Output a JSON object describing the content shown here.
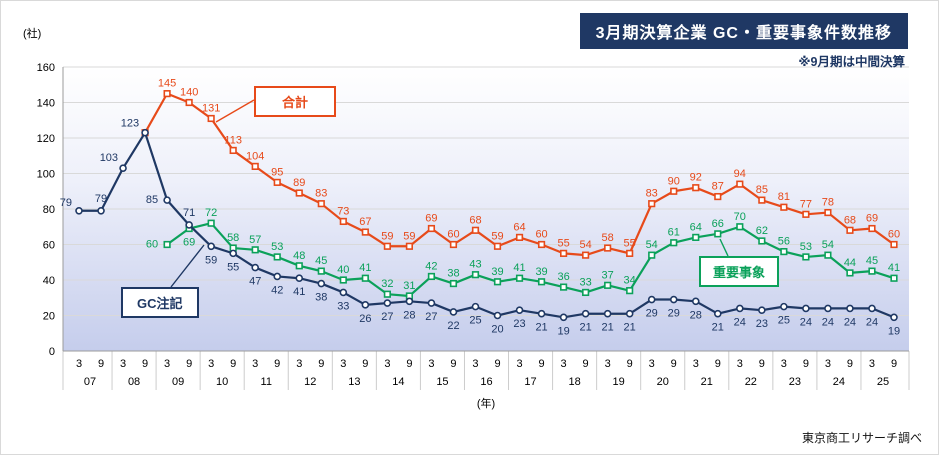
{
  "header": {
    "title": "3月期決算企業 GC・重要事象件数推移",
    "note": "※9月期は中間決算"
  },
  "footer": {
    "credit": "東京商工リサーチ調べ"
  },
  "chart_data": {
    "type": "line",
    "title": "3月期決算企業 GC・重要事象件数推移",
    "ylabel_unit": "(社)",
    "xlabel": "(年)",
    "ylim": [
      0,
      160
    ],
    "ytick_step": 20,
    "grid": true,
    "legend_position": "inline-labels",
    "years": [
      "07",
      "08",
      "09",
      "10",
      "11",
      "12",
      "13",
      "14",
      "15",
      "16",
      "17",
      "18",
      "19",
      "20",
      "21",
      "22",
      "23",
      "24",
      "25"
    ],
    "categories": [
      "3",
      "9",
      "3",
      "9",
      "3",
      "9",
      "3",
      "9",
      "3",
      "9",
      "3",
      "9",
      "3",
      "9",
      "3",
      "9",
      "3",
      "9",
      "3",
      "9",
      "3",
      "9",
      "3",
      "9",
      "3",
      "9",
      "3",
      "9",
      "3",
      "9",
      "3",
      "9",
      "3",
      "9",
      "3",
      "9",
      "3",
      "9"
    ],
    "series": [
      {
        "key": "total",
        "name": "合計",
        "color": "#e74a1a",
        "marker": "square",
        "label_start": 4,
        "values": [
          null,
          null,
          null,
          123,
          145,
          140,
          131,
          113,
          104,
          95,
          89,
          83,
          73,
          67,
          59,
          59,
          69,
          60,
          68,
          59,
          64,
          60,
          55,
          54,
          58,
          55,
          83,
          90,
          92,
          87,
          94,
          85,
          81,
          77,
          78,
          68,
          69,
          60
        ]
      },
      {
        "key": "gc",
        "name": "GC注記",
        "color": "#1f3864",
        "marker": "circle",
        "label_start": 0,
        "values": [
          79,
          79,
          103,
          123,
          85,
          71,
          59,
          55,
          47,
          42,
          41,
          38,
          33,
          26,
          27,
          28,
          27,
          22,
          25,
          20,
          23,
          21,
          19,
          21,
          21,
          21,
          29,
          29,
          28,
          21,
          24,
          23,
          25,
          24,
          24,
          24,
          24,
          19
        ]
      },
      {
        "key": "important",
        "name": "重要事象",
        "color": "#0ba15a",
        "marker": "square",
        "label_start": 0,
        "values": [
          null,
          null,
          null,
          null,
          60,
          69,
          72,
          58,
          57,
          53,
          48,
          45,
          40,
          41,
          32,
          31,
          42,
          38,
          43,
          39,
          41,
          39,
          36,
          33,
          37,
          34,
          54,
          61,
          64,
          66,
          70,
          62,
          56,
          53,
          54,
          44,
          45,
          41
        ]
      }
    ]
  }
}
